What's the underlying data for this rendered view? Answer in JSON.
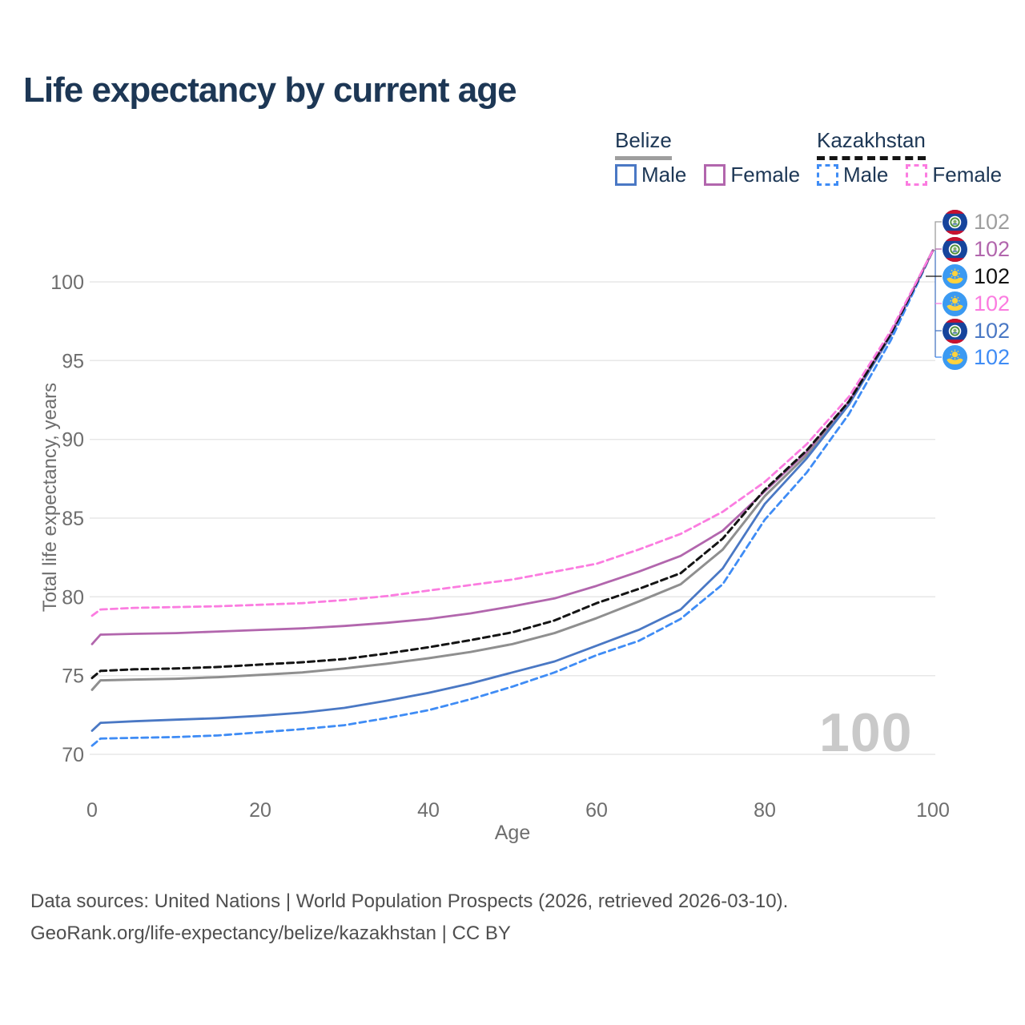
{
  "title": "Life expectancy by current age",
  "legend": {
    "groups": [
      {
        "label": "Belize",
        "line_style": "solid",
        "rule_color": "#9e9e9e",
        "items": [
          {
            "label": "Male",
            "color": "#4a78c4"
          },
          {
            "label": "Female",
            "color": "#b266ad"
          }
        ]
      },
      {
        "label": "Kazakhstan",
        "line_style": "dashed",
        "rule_color": "#141414",
        "items": [
          {
            "label": "Male",
            "color": "#3f8cf5"
          },
          {
            "label": "Female",
            "color": "#fb7ce0"
          }
        ]
      }
    ]
  },
  "chart_data": {
    "type": "line",
    "title": "Life expectancy by current age",
    "xlabel": "Age",
    "ylabel": "Total life expectancy, years",
    "x_ticks": [
      0,
      20,
      40,
      60,
      80,
      100
    ],
    "y_ticks": [
      70,
      75,
      80,
      85,
      90,
      95,
      100
    ],
    "xlim": [
      0,
      100
    ],
    "ylim": [
      69.6,
      103
    ],
    "grid": "horizontal",
    "hover_age_indicator": "100",
    "x": [
      0,
      1,
      5,
      10,
      15,
      20,
      25,
      30,
      35,
      40,
      45,
      50,
      55,
      60,
      65,
      70,
      75,
      80,
      85,
      90,
      95,
      100
    ],
    "series": [
      {
        "name": "Belize — Both sexes",
        "country": "Belize",
        "sex": "both",
        "color": "#8f8f8f",
        "dash": false,
        "width": 3,
        "values": [
          74.1,
          74.7,
          74.75,
          74.8,
          74.9,
          75.05,
          75.2,
          75.45,
          75.75,
          76.1,
          76.5,
          77.0,
          77.7,
          78.65,
          79.7,
          80.8,
          83.0,
          86.4,
          89.0,
          92.3,
          96.7,
          102
        ]
      },
      {
        "name": "Belize — Male",
        "country": "Belize",
        "sex": "male",
        "color": "#4a78c4",
        "dash": false,
        "width": 2.8,
        "values": [
          71.5,
          72.0,
          72.1,
          72.2,
          72.3,
          72.45,
          72.65,
          72.95,
          73.4,
          73.9,
          74.5,
          75.2,
          75.9,
          76.9,
          77.9,
          79.2,
          81.8,
          85.9,
          88.8,
          92.2,
          96.6,
          102
        ]
      },
      {
        "name": "Kazakhstan — Male",
        "country": "Kazakhstan",
        "sex": "male",
        "color": "#3f8cf5",
        "dash": true,
        "width": 2.8,
        "values": [
          70.55,
          71.0,
          71.05,
          71.1,
          71.2,
          71.4,
          71.6,
          71.85,
          72.3,
          72.8,
          73.5,
          74.3,
          75.2,
          76.3,
          77.2,
          78.6,
          80.8,
          84.9,
          87.9,
          91.6,
          96.3,
          102
        ]
      },
      {
        "name": "Belize — Female",
        "country": "Belize",
        "sex": "female",
        "color": "#b266ad",
        "dash": false,
        "width": 2.8,
        "values": [
          77.0,
          77.6,
          77.65,
          77.7,
          77.8,
          77.9,
          78.0,
          78.15,
          78.35,
          78.6,
          78.95,
          79.4,
          79.9,
          80.7,
          81.6,
          82.6,
          84.2,
          86.7,
          89.2,
          92.4,
          96.7,
          102
        ]
      },
      {
        "name": "Kazakhstan — Both sexes",
        "country": "Kazakhstan",
        "sex": "both",
        "color": "#141414",
        "dash": true,
        "width": 3,
        "values": [
          74.85,
          75.3,
          75.4,
          75.45,
          75.55,
          75.7,
          75.85,
          76.05,
          76.4,
          76.8,
          77.25,
          77.75,
          78.5,
          79.6,
          80.5,
          81.5,
          83.7,
          86.8,
          89.3,
          92.4,
          96.7,
          102
        ]
      },
      {
        "name": "Kazakhstan — Female",
        "country": "Kazakhstan",
        "sex": "female",
        "color": "#fb7ce0",
        "dash": true,
        "width": 2.8,
        "values": [
          78.8,
          79.2,
          79.3,
          79.35,
          79.4,
          79.5,
          79.6,
          79.8,
          80.05,
          80.4,
          80.75,
          81.1,
          81.6,
          82.1,
          83.0,
          84.0,
          85.4,
          87.3,
          89.7,
          92.7,
          96.9,
          102
        ]
      }
    ],
    "end_labels": [
      {
        "value": "102",
        "icon": "belize-flag-icon",
        "flag": "belize",
        "color": "#9e9e9e",
        "series": "Belize — Both sexes"
      },
      {
        "value": "102",
        "icon": "belize-flag-icon",
        "flag": "belize",
        "color": "#b266ad",
        "series": "Belize — Female"
      },
      {
        "value": "102",
        "icon": "kazakhstan-flag-icon",
        "flag": "kazakhstan",
        "color": "#111111",
        "series": "Kazakhstan — Both sexes"
      },
      {
        "value": "102",
        "icon": "kazakhstan-flag-icon",
        "flag": "kazakhstan",
        "color": "#fb7ce0",
        "series": "Kazakhstan — Female"
      },
      {
        "value": "102",
        "icon": "belize-flag-icon",
        "flag": "belize",
        "color": "#4a78c4",
        "series": "Belize — Male"
      },
      {
        "value": "102",
        "icon": "kazakhstan-flag-icon",
        "flag": "kazakhstan",
        "color": "#3f8cf5",
        "series": "Kazakhstan — Male"
      }
    ]
  },
  "footer": {
    "line1": "Data sources: United Nations | World Population Prospects (2026, retrieved 2026-03-10).",
    "line2": "GeoRank.org/life-expectancy/belize/kazakhstan | CC BY"
  }
}
